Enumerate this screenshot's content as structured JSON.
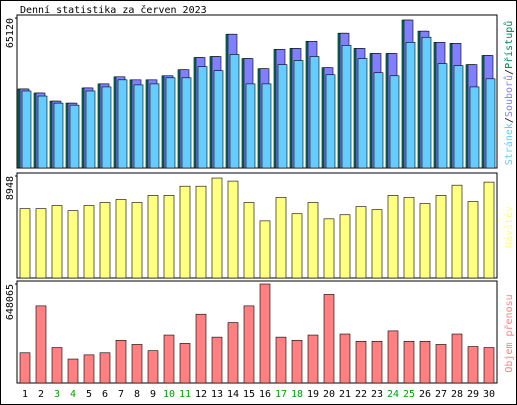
{
  "chart_data": [
    {
      "type": "grouped-bar",
      "title": "Denní statistika za červen 2023",
      "categories": [
        "1",
        "2",
        "3",
        "4",
        "5",
        "6",
        "7",
        "8",
        "9",
        "10",
        "11",
        "12",
        "13",
        "14",
        "15",
        "16",
        "17",
        "18",
        "19",
        "20",
        "21",
        "22",
        "23",
        "24",
        "25",
        "26",
        "27",
        "28",
        "29",
        "30"
      ],
      "category_colors": [
        "#000000",
        "#000000",
        "#00a000",
        "#00a000",
        "#000000",
        "#000000",
        "#000000",
        "#000000",
        "#000000",
        "#00a000",
        "#00a000",
        "#000000",
        "#000000",
        "#000000",
        "#000000",
        "#000000",
        "#00a000",
        "#00a000",
        "#000000",
        "#000000",
        "#000000",
        "#000000",
        "#000000",
        "#00a000",
        "#00a000",
        "#000000",
        "#000000",
        "#000000",
        "#000000",
        "#000000"
      ],
      "legend_separator": "/",
      "series": [
        {
          "name": "Přístupů",
          "color": "#00805c",
          "values": [
            34320,
            32560,
            29040,
            28160,
            34760,
            36520,
            39600,
            38280,
            38280,
            40040,
            42680,
            47960,
            48400,
            58080,
            47520,
            43120,
            51480,
            51920,
            55000,
            43560,
            58520,
            51920,
            49720,
            49720,
            64240,
            59400,
            54560,
            54120,
            44880,
            48840
          ]
        },
        {
          "name": "Souborů",
          "color": "#8080ff",
          "values": [
            34320,
            32560,
            29040,
            28160,
            34760,
            36520,
            39600,
            38280,
            38280,
            40040,
            42680,
            47960,
            48400,
            58080,
            47520,
            43120,
            51480,
            51920,
            55000,
            43560,
            58520,
            51920,
            49720,
            49720,
            64240,
            59400,
            54560,
            54120,
            44880,
            48840
          ]
        },
        {
          "name": "Stránek",
          "color": "#66ccff",
          "values": [
            33440,
            31240,
            28160,
            27280,
            33440,
            35200,
            38280,
            36080,
            36520,
            39160,
            39160,
            44000,
            42240,
            49280,
            36520,
            36520,
            44880,
            46640,
            48400,
            40480,
            53240,
            47520,
            41360,
            40040,
            54560,
            56760,
            45320,
            44440,
            35200,
            38720
          ]
        }
      ],
      "ylim": [
        0,
        65120
      ],
      "yticks": [
        65120
      ]
    },
    {
      "type": "bar",
      "series": [
        {
          "name": "Návštěv",
          "color": "#ffff80",
          "values": [
            6085,
            6085,
            6353,
            5906,
            6353,
            6622,
            6890,
            6622,
            7248,
            7248,
            8053,
            8053,
            8769,
            8501,
            6622,
            5011,
            7069,
            5637,
            6622,
            5190,
            5548,
            6264,
            5995,
            7248,
            7069,
            6532,
            7248,
            8143,
            6711,
            8411
          ]
        }
      ],
      "ylim": [
        0,
        8948
      ],
      "yticks": [
        8948
      ]
    },
    {
      "type": "bar",
      "series": [
        {
          "name": "Objem přenosu",
          "color": "#ff8080",
          "values": [
            197838,
            504828,
            231948,
            156906,
            184194,
            197838,
            279702,
            252414,
            211482,
            313812,
            259236,
            450252,
            300168,
            395676,
            504828,
            648065,
            300168,
            279702,
            313812,
            579870,
            320634,
            272880,
            272880,
            341100,
            272880,
            272880,
            252414,
            320634,
            238770,
            231948
          ]
        }
      ],
      "ylim": [
        0,
        648065
      ],
      "yticks": [
        648065
      ]
    }
  ]
}
